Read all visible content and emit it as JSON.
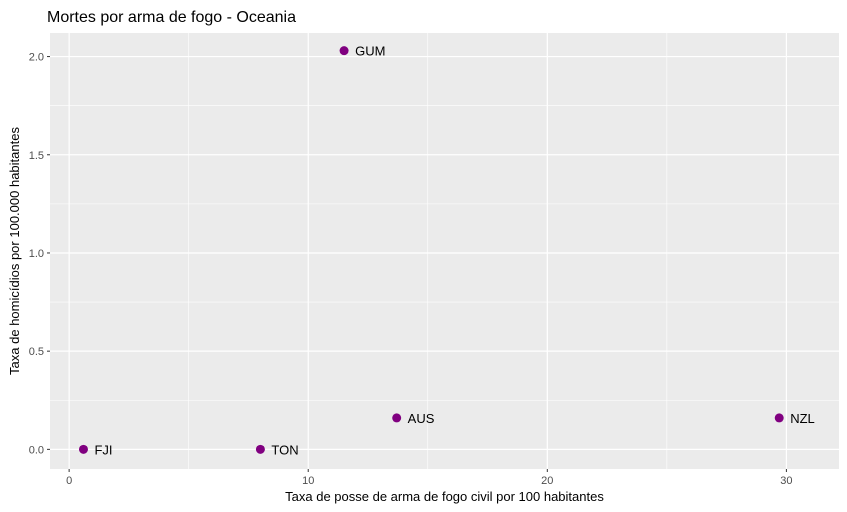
{
  "chart_data": {
    "type": "scatter",
    "title": "Mortes por arma de fogo - Oceania",
    "xlabel": "Taxa de posse de arma de fogo civil por 100 habitantes",
    "ylabel": "Taxa de homicídios por 100.000 habitantes",
    "xlim": [
      -0.8,
      32.2
    ],
    "ylim": [
      -0.1,
      2.12
    ],
    "x_ticks": [
      0,
      10,
      20,
      30
    ],
    "x_tick_labels": [
      "0",
      "10",
      "20",
      "30"
    ],
    "y_ticks": [
      0,
      0.5,
      1,
      1.5,
      2
    ],
    "y_tick_labels": [
      "0.0",
      "0.5",
      "1.0",
      "1.5",
      "2.0"
    ],
    "grid": true,
    "panel_background": "#ebebeb",
    "grid_color": "#ffffff",
    "point_color": "#800080",
    "points": [
      {
        "label": "GUM",
        "x": 11.5,
        "y": 2.03
      },
      {
        "label": "AUS",
        "x": 13.7,
        "y": 0.16
      },
      {
        "label": "NZL",
        "x": 29.7,
        "y": 0.16
      },
      {
        "label": "FJI",
        "x": 0.6,
        "y": 0.0
      },
      {
        "label": "TON",
        "x": 8.0,
        "y": 0.0
      }
    ]
  }
}
